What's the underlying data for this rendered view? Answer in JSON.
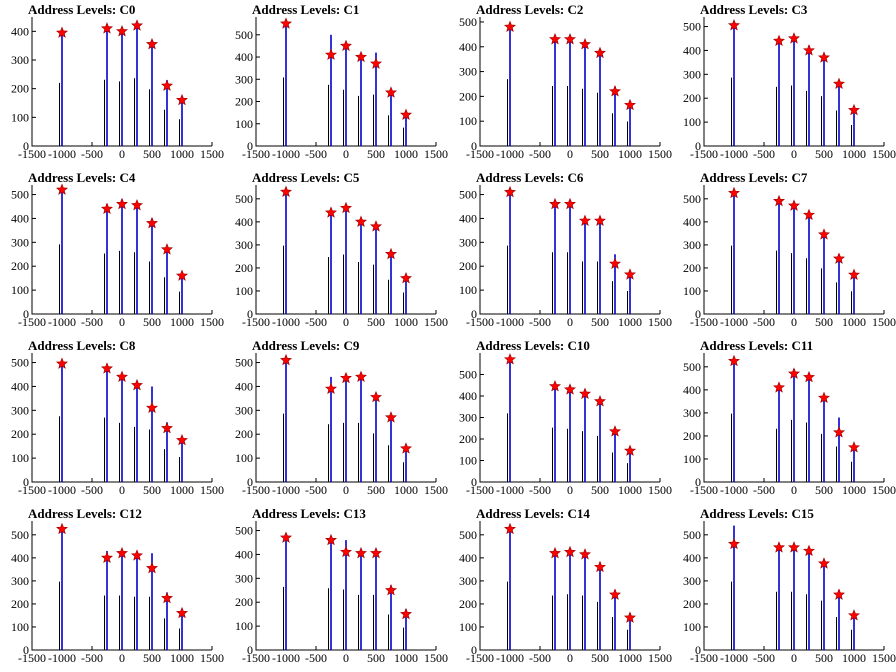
{
  "chart_data": [
    {
      "type": "bar",
      "title": "Address Levels: C0",
      "ylim": [
        0,
        450
      ],
      "yticks": [
        0,
        100,
        200,
        300,
        400
      ],
      "xlim": [
        -1500,
        1500
      ],
      "xticks": [
        "-1500",
        "-1000",
        "-500",
        "0",
        "500",
        "1000",
        "1500"
      ],
      "x": [
        -1000,
        -250,
        0,
        250,
        500,
        750,
        1000
      ],
      "bars": [
        400,
        420,
        410,
        430,
        360,
        230,
        170
      ],
      "markers": [
        395,
        410,
        400,
        420,
        355,
        210,
        160
      ]
    },
    {
      "type": "bar",
      "title": "Address Levels: C1",
      "ylim": [
        0,
        580
      ],
      "yticks": [
        0,
        100,
        200,
        300,
        400,
        500
      ],
      "xlim": [
        -1500,
        1500
      ],
      "xticks": [
        "-1500",
        "-1000",
        "-500",
        "0",
        "500",
        "1000",
        "1500"
      ],
      "x": [
        -1000,
        -250,
        0,
        250,
        500,
        750,
        1000
      ],
      "bars": [
        560,
        500,
        460,
        410,
        420,
        250,
        150
      ],
      "markers": [
        550,
        410,
        450,
        400,
        370,
        240,
        140
      ]
    },
    {
      "type": "bar",
      "title": "Address Levels: C2",
      "ylim": [
        0,
        520
      ],
      "yticks": [
        0,
        100,
        200,
        300,
        400,
        500
      ],
      "xlim": [
        -1500,
        1500
      ],
      "xticks": [
        "-1500",
        "-1000",
        "-500",
        "0",
        "500",
        "1000",
        "1500"
      ],
      "x": [
        -1000,
        -250,
        0,
        250,
        500,
        750,
        1000
      ],
      "bars": [
        490,
        440,
        440,
        420,
        390,
        240,
        180
      ],
      "markers": [
        480,
        430,
        430,
        410,
        375,
        220,
        165
      ]
    },
    {
      "type": "bar",
      "title": "Address Levels: C3",
      "ylim": [
        0,
        540
      ],
      "yticks": [
        0,
        100,
        200,
        300,
        400,
        500
      ],
      "xlim": [
        -1500,
        1500
      ],
      "xticks": [
        "-1500",
        "-1000",
        "-500",
        "0",
        "500",
        "1000",
        "1500"
      ],
      "x": [
        -1000,
        -250,
        0,
        250,
        500,
        750,
        1000
      ],
      "bars": [
        520,
        450,
        460,
        420,
        380,
        270,
        160
      ],
      "markers": [
        505,
        440,
        450,
        400,
        370,
        260,
        150
      ]
    },
    {
      "type": "bar",
      "title": "Address Levels: C4",
      "ylim": [
        0,
        540
      ],
      "yticks": [
        0,
        100,
        200,
        300,
        400,
        500
      ],
      "xlim": [
        -1500,
        1500
      ],
      "xticks": [
        "-1500",
        "-1000",
        "-500",
        "0",
        "500",
        "1000",
        "1500"
      ],
      "x": [
        -1000,
        -250,
        0,
        250,
        500,
        750,
        1000
      ],
      "bars": [
        530,
        460,
        480,
        470,
        400,
        280,
        170
      ],
      "markers": [
        520,
        440,
        460,
        455,
        380,
        270,
        160
      ]
    },
    {
      "type": "bar",
      "title": "Address Levels: C5",
      "ylim": [
        0,
        560
      ],
      "yticks": [
        0,
        100,
        200,
        300,
        400,
        500
      ],
      "xlim": [
        -1500,
        1500
      ],
      "xticks": [
        "-1500",
        "-1000",
        "-500",
        "0",
        "500",
        "1000",
        "1500"
      ],
      "x": [
        -1000,
        -250,
        0,
        250,
        500,
        750,
        1000
      ],
      "bars": [
        540,
        450,
        470,
        410,
        390,
        270,
        170
      ],
      "markers": [
        530,
        440,
        460,
        400,
        380,
        260,
        155
      ]
    },
    {
      "type": "bar",
      "title": "Address Levels: C6",
      "ylim": [
        0,
        540
      ],
      "yticks": [
        0,
        100,
        200,
        300,
        400,
        500
      ],
      "xlim": [
        -1500,
        1500
      ],
      "xticks": [
        "-1500",
        "-1000",
        "-500",
        "0",
        "500",
        "1000",
        "1500"
      ],
      "x": [
        -1000,
        -250,
        0,
        250,
        500,
        750,
        1000
      ],
      "bars": [
        520,
        470,
        470,
        400,
        400,
        250,
        175
      ],
      "markers": [
        510,
        460,
        460,
        390,
        390,
        210,
        165
      ]
    },
    {
      "type": "bar",
      "title": "Address Levels: C7",
      "ylim": [
        0,
        560
      ],
      "yticks": [
        0,
        100,
        200,
        300,
        400,
        500
      ],
      "xlim": [
        -1500,
        1500
      ],
      "xticks": [
        "-1500",
        "-1000",
        "-500",
        "0",
        "500",
        "1000",
        "1500"
      ],
      "x": [
        -1000,
        -250,
        0,
        250,
        500,
        750,
        1000
      ],
      "bars": [
        540,
        500,
        480,
        440,
        360,
        250,
        180
      ],
      "markers": [
        525,
        490,
        470,
        430,
        345,
        240,
        170
      ]
    },
    {
      "type": "bar",
      "title": "Address Levels: C8",
      "ylim": [
        0,
        540
      ],
      "yticks": [
        0,
        100,
        200,
        300,
        400,
        500
      ],
      "xlim": [
        -1500,
        1500
      ],
      "xticks": [
        "-1500",
        "-1000",
        "-500",
        "0",
        "500",
        "1000",
        "1500"
      ],
      "x": [
        -1000,
        -250,
        0,
        250,
        500,
        750,
        1000
      ],
      "bars": [
        500,
        490,
        450,
        420,
        400,
        250,
        190
      ],
      "markers": [
        495,
        475,
        440,
        405,
        310,
        225,
        175
      ]
    },
    {
      "type": "bar",
      "title": "Address Levels: C9",
      "ylim": [
        0,
        540
      ],
      "yticks": [
        0,
        100,
        200,
        300,
        400,
        500
      ],
      "xlim": [
        -1500,
        1500
      ],
      "xticks": [
        "-1500",
        "-1000",
        "-500",
        "0",
        "500",
        "1000",
        "1500"
      ],
      "x": [
        -1000,
        -250,
        0,
        250,
        500,
        750,
        1000
      ],
      "bars": [
        520,
        440,
        450,
        450,
        370,
        280,
        150
      ],
      "markers": [
        510,
        390,
        435,
        440,
        355,
        270,
        140
      ]
    },
    {
      "type": "bar",
      "title": "Address Levels: C10",
      "ylim": [
        0,
        600
      ],
      "yticks": [
        0,
        100,
        200,
        300,
        400,
        500
      ],
      "xlim": [
        -1500,
        1500
      ],
      "xticks": [
        "-1500",
        "-1000",
        "-500",
        "0",
        "500",
        "1000",
        "1500"
      ],
      "x": [
        -1000,
        -250,
        0,
        250,
        500,
        750,
        1000
      ],
      "bars": [
        580,
        460,
        450,
        430,
        390,
        250,
        160
      ],
      "markers": [
        570,
        445,
        430,
        410,
        375,
        235,
        145
      ]
    },
    {
      "type": "bar",
      "title": "Address Levels: C11",
      "ylim": [
        0,
        560
      ],
      "yticks": [
        0,
        100,
        200,
        300,
        400,
        500
      ],
      "xlim": [
        -1500,
        1500
      ],
      "xticks": [
        "-1500",
        "-1000",
        "-500",
        "0",
        "500",
        "1000",
        "1500"
      ],
      "x": [
        -1000,
        -250,
        0,
        250,
        500,
        750,
        1000
      ],
      "bars": [
        540,
        420,
        490,
        470,
        380,
        280,
        160
      ],
      "markers": [
        525,
        410,
        470,
        455,
        365,
        215,
        150
      ]
    },
    {
      "type": "bar",
      "title": "Address Levels: C12",
      "ylim": [
        0,
        560
      ],
      "yticks": [
        0,
        100,
        200,
        300,
        400,
        500
      ],
      "xlim": [
        -1500,
        1500
      ],
      "xticks": [
        "-1500",
        "-1000",
        "-500",
        "0",
        "500",
        "1000",
        "1500"
      ],
      "x": [
        -1000,
        -250,
        0,
        250,
        500,
        750,
        1000
      ],
      "bars": [
        540,
        430,
        430,
        420,
        420,
        250,
        170
      ],
      "markers": [
        525,
        400,
        420,
        410,
        355,
        225,
        160
      ]
    },
    {
      "type": "bar",
      "title": "Address Levels: C13",
      "ylim": [
        0,
        540
      ],
      "yticks": [
        0,
        100,
        200,
        300,
        400,
        500
      ],
      "xlim": [
        -1500,
        1500
      ],
      "xticks": [
        "-1500",
        "-1000",
        "-500",
        "0",
        "500",
        "1000",
        "1500"
      ],
      "x": [
        -1000,
        -250,
        0,
        250,
        500,
        750,
        1000
      ],
      "bars": [
        480,
        470,
        460,
        420,
        420,
        270,
        170
      ],
      "markers": [
        470,
        460,
        410,
        405,
        405,
        250,
        150
      ]
    },
    {
      "type": "bar",
      "title": "Address Levels: C14",
      "ylim": [
        0,
        560
      ],
      "yticks": [
        0,
        100,
        200,
        300,
        400,
        500
      ],
      "xlim": [
        -1500,
        1500
      ],
      "xticks": [
        "-1500",
        "-1000",
        "-500",
        "0",
        "500",
        "1000",
        "1500"
      ],
      "x": [
        -1000,
        -250,
        0,
        250,
        500,
        750,
        1000
      ],
      "bars": [
        540,
        430,
        440,
        430,
        380,
        260,
        160
      ],
      "markers": [
        525,
        420,
        425,
        415,
        360,
        240,
        140
      ]
    },
    {
      "type": "bar",
      "title": "Address Levels: C15",
      "ylim": [
        0,
        560
      ],
      "yticks": [
        0,
        100,
        200,
        300,
        400,
        500
      ],
      "xlim": [
        -1500,
        1500
      ],
      "xticks": [
        "-1500",
        "-1000",
        "-500",
        "0",
        "500",
        "1000",
        "1500"
      ],
      "x": [
        -1000,
        -250,
        0,
        250,
        500,
        750,
        1000
      ],
      "bars": [
        540,
        460,
        460,
        440,
        390,
        260,
        160
      ],
      "markers": [
        460,
        445,
        445,
        430,
        375,
        240,
        150
      ]
    }
  ],
  "colors": {
    "bar": "#0000cc",
    "marker": "#ff0000",
    "axis": "#000000"
  },
  "marker_icon": "star-icon"
}
